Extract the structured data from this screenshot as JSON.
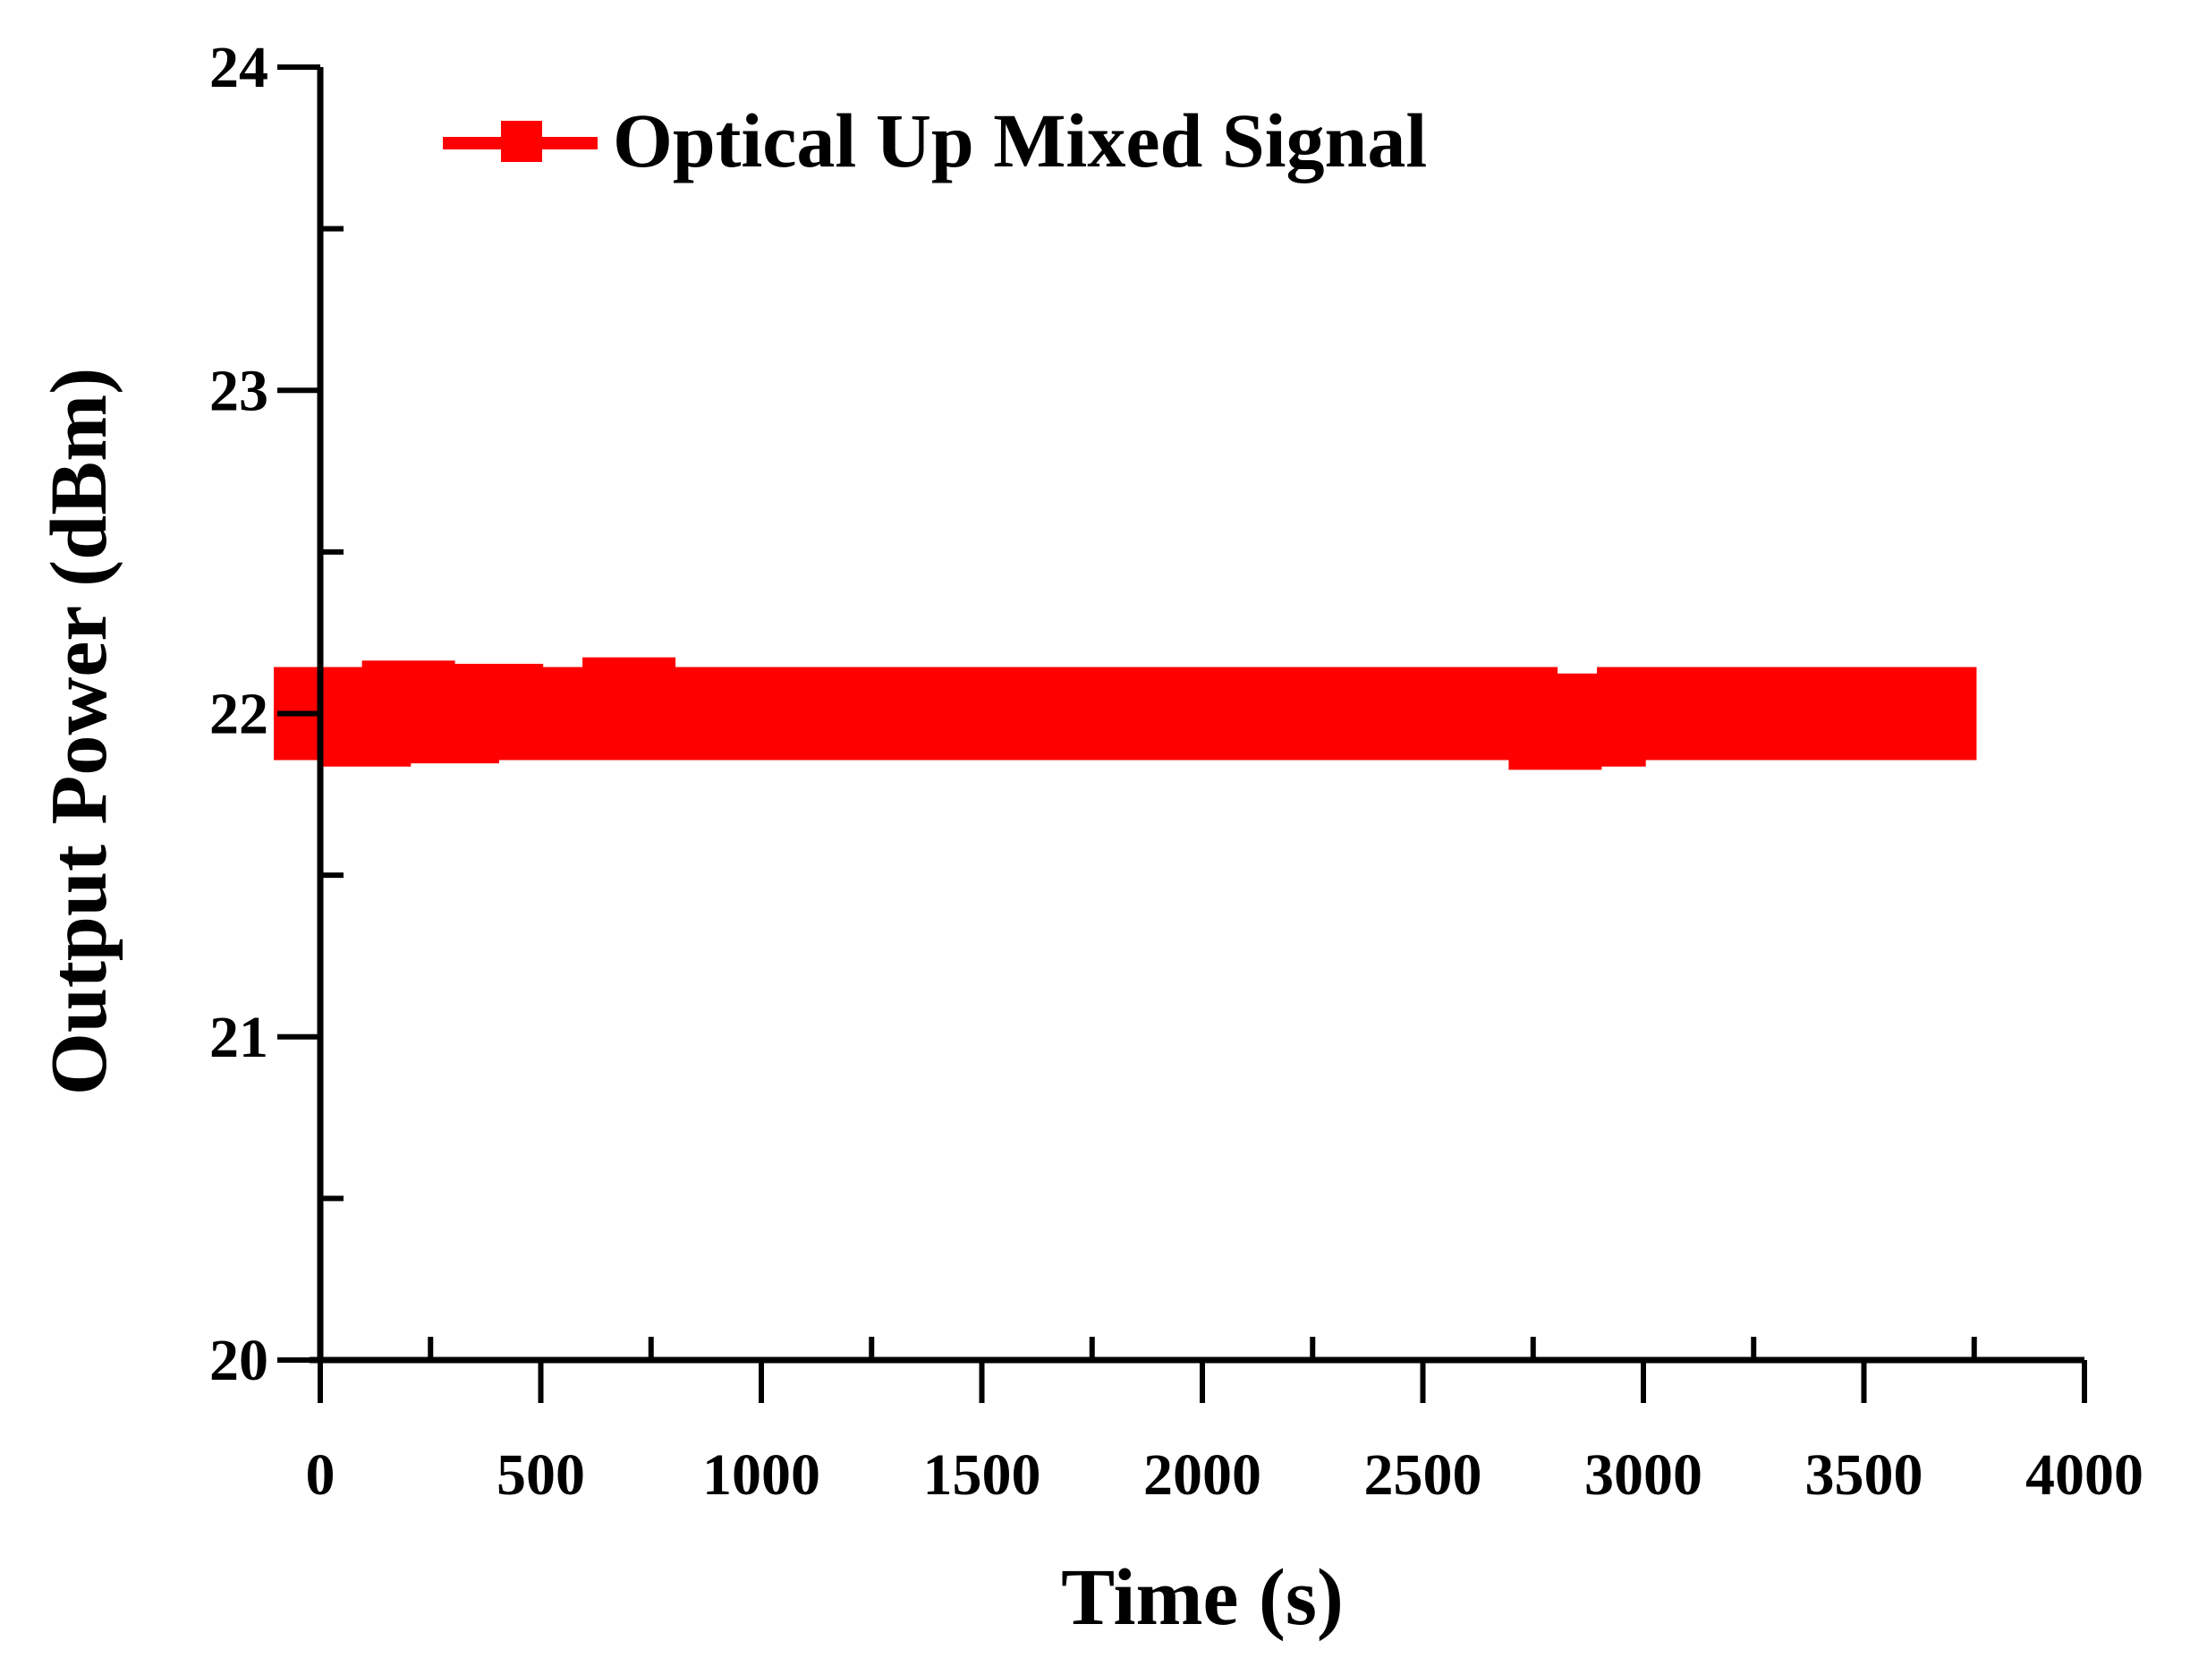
{
  "chart_data": {
    "type": "line",
    "title": "",
    "xlabel": "Time (s)",
    "ylabel": "Output Power (dBm)",
    "xlim": [
      0,
      4000
    ],
    "ylim": [
      20,
      24
    ],
    "x_ticks": [
      0,
      500,
      1000,
      1500,
      2000,
      2500,
      3000,
      3500,
      4000
    ],
    "x_tick_labels": [
      "0",
      "500",
      "1000",
      "1500",
      "2000",
      "2500",
      "3000",
      "3500",
      "4000"
    ],
    "y_ticks": [
      20,
      21,
      22,
      23,
      24
    ],
    "y_tick_labels": [
      "20",
      "21",
      "22",
      "23",
      "24"
    ],
    "grid": false,
    "legend": {
      "position": "top-left"
    },
    "series": [
      {
        "name": "Optical Up Mixed Signal",
        "color": "#ff0000",
        "marker": "square",
        "x": [
          0,
          100,
          200,
          300,
          400,
          500,
          600,
          700,
          800,
          900,
          1000,
          1100,
          1200,
          1300,
          1400,
          1500,
          1600,
          1700,
          1800,
          1900,
          2000,
          2100,
          2200,
          2300,
          2400,
          2500,
          2600,
          2700,
          2800,
          2900,
          3000,
          3100,
          3200,
          3300,
          3400,
          3500,
          3600,
          3650
        ],
        "y": [
          22.0,
          21.98,
          22.02,
          21.99,
          22.01,
          22.0,
          22.0,
          22.03,
          22.0,
          22.0,
          22.0,
          22.0,
          22.0,
          22.0,
          22.0,
          22.0,
          22.0,
          22.0,
          22.0,
          22.0,
          22.0,
          22.0,
          22.0,
          22.0,
          22.0,
          22.0,
          22.0,
          22.0,
          21.97,
          21.98,
          22.0,
          22.0,
          22.0,
          22.0,
          22.0,
          22.0,
          22.0,
          22.0
        ]
      }
    ]
  }
}
